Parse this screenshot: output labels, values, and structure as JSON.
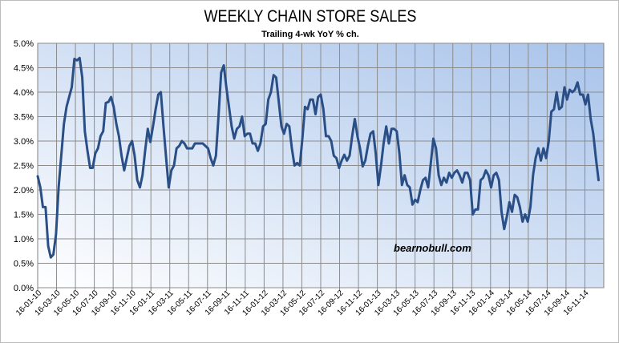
{
  "chart_data": {
    "type": "line",
    "title": "WEEKLY CHAIN STORE SALES",
    "subtitle": "Trailing 4-wk YoY % ch.",
    "watermark": "bearnobull.com",
    "ylim": [
      0,
      5
    ],
    "yticks": [
      "0.0%",
      "0.5%",
      "1.0%",
      "1.5%",
      "2.0%",
      "2.5%",
      "3.0%",
      "3.5%",
      "4.0%",
      "4.5%",
      "5.0%"
    ],
    "x_tick_labels": [
      "16-01-10",
      "16-03-10",
      "16-05-10",
      "16-07-10",
      "16-09-10",
      "16-11-10",
      "16-01-11",
      "16-03-11",
      "16-05-11",
      "16-07-11",
      "16-09-11",
      "16-11-11",
      "16-01-12",
      "16-03-12",
      "16-05-12",
      "16-07-12",
      "16-09-12",
      "16-11-12",
      "16-01-13",
      "16-03-13",
      "16-05-13",
      "16-07-13",
      "16-09-13",
      "16-11-13",
      "16-01-14",
      "16-03-14",
      "16-05-14",
      "16-07-14",
      "16-09-14",
      "16-11-14"
    ],
    "grid": true,
    "plot_background": [
      "#ffffff",
      "#a8c3ea"
    ],
    "line_color": "#2a4f86",
    "series": [
      {
        "points": [
          [
            0,
            2.28
          ],
          [
            1,
            2.05
          ],
          [
            2,
            1.65
          ],
          [
            3,
            1.65
          ],
          [
            4,
            0.85
          ],
          [
            5,
            0.62
          ],
          [
            6,
            0.68
          ],
          [
            7,
            1.1
          ],
          [
            8,
            2.05
          ],
          [
            9,
            2.7
          ],
          [
            10,
            3.35
          ],
          [
            11,
            3.7
          ],
          [
            12,
            3.9
          ],
          [
            13,
            4.1
          ],
          [
            14,
            4.68
          ],
          [
            15,
            4.65
          ],
          [
            16,
            4.7
          ],
          [
            17,
            4.3
          ],
          [
            18,
            3.2
          ],
          [
            19,
            2.8
          ],
          [
            20,
            2.45
          ],
          [
            21,
            2.45
          ],
          [
            22,
            2.75
          ],
          [
            23,
            2.85
          ],
          [
            24,
            3.1
          ],
          [
            25,
            3.2
          ],
          [
            26,
            3.78
          ],
          [
            27,
            3.8
          ],
          [
            28,
            3.9
          ],
          [
            29,
            3.7
          ],
          [
            30,
            3.35
          ],
          [
            31,
            3.1
          ],
          [
            32,
            2.7
          ],
          [
            33,
            2.4
          ],
          [
            34,
            2.65
          ],
          [
            35,
            2.9
          ],
          [
            36,
            3.0
          ],
          [
            37,
            2.7
          ],
          [
            38,
            2.2
          ],
          [
            39,
            2.05
          ],
          [
            40,
            2.3
          ],
          [
            41,
            2.8
          ],
          [
            42,
            3.25
          ],
          [
            43,
            2.98
          ],
          [
            44,
            3.3
          ],
          [
            45,
            3.65
          ],
          [
            46,
            3.95
          ],
          [
            47,
            4.0
          ],
          [
            48,
            3.3
          ],
          [
            49,
            2.65
          ],
          [
            50,
            2.05
          ],
          [
            51,
            2.4
          ],
          [
            52,
            2.5
          ],
          [
            53,
            2.85
          ],
          [
            54,
            2.9
          ],
          [
            55,
            3.0
          ],
          [
            56,
            2.95
          ],
          [
            57,
            2.85
          ],
          [
            58,
            2.85
          ],
          [
            59,
            2.85
          ],
          [
            60,
            2.95
          ],
          [
            61,
            2.95
          ],
          [
            62,
            2.95
          ],
          [
            63,
            2.95
          ],
          [
            64,
            2.9
          ],
          [
            65,
            2.85
          ],
          [
            66,
            2.65
          ],
          [
            67,
            2.5
          ],
          [
            68,
            2.7
          ],
          [
            69,
            3.5
          ],
          [
            70,
            4.4
          ],
          [
            71,
            4.55
          ],
          [
            72,
            4.1
          ],
          [
            73,
            3.7
          ],
          [
            74,
            3.3
          ],
          [
            75,
            3.05
          ],
          [
            76,
            3.25
          ],
          [
            77,
            3.3
          ],
          [
            78,
            3.5
          ],
          [
            79,
            3.1
          ],
          [
            80,
            3.15
          ],
          [
            81,
            3.15
          ],
          [
            82,
            2.95
          ],
          [
            83,
            2.95
          ],
          [
            84,
            2.8
          ],
          [
            85,
            2.95
          ],
          [
            86,
            3.3
          ],
          [
            87,
            3.35
          ],
          [
            88,
            3.85
          ],
          [
            89,
            4.0
          ],
          [
            90,
            4.35
          ],
          [
            91,
            4.3
          ],
          [
            92,
            3.8
          ],
          [
            93,
            3.3
          ],
          [
            94,
            3.15
          ],
          [
            95,
            3.35
          ],
          [
            96,
            3.3
          ],
          [
            97,
            2.85
          ],
          [
            98,
            2.5
          ],
          [
            99,
            2.55
          ],
          [
            100,
            2.5
          ],
          [
            101,
            3.05
          ],
          [
            102,
            3.7
          ],
          [
            103,
            3.65
          ],
          [
            104,
            3.85
          ],
          [
            105,
            3.85
          ],
          [
            106,
            3.55
          ],
          [
            107,
            3.9
          ],
          [
            108,
            3.95
          ],
          [
            109,
            3.65
          ],
          [
            110,
            3.1
          ],
          [
            111,
            3.1
          ],
          [
            112,
            3.0
          ],
          [
            113,
            2.7
          ],
          [
            114,
            2.65
          ],
          [
            115,
            2.45
          ],
          [
            116,
            2.6
          ],
          [
            117,
            2.72
          ],
          [
            118,
            2.6
          ],
          [
            119,
            2.7
          ],
          [
            120,
            3.1
          ],
          [
            121,
            3.45
          ],
          [
            122,
            3.1
          ],
          [
            123,
            2.85
          ],
          [
            124,
            2.48
          ],
          [
            125,
            2.6
          ],
          [
            126,
            2.9
          ],
          [
            127,
            3.15
          ],
          [
            128,
            3.2
          ],
          [
            129,
            2.75
          ],
          [
            130,
            2.1
          ],
          [
            131,
            2.5
          ],
          [
            132,
            2.95
          ],
          [
            133,
            3.3
          ],
          [
            134,
            2.95
          ],
          [
            135,
            3.25
          ],
          [
            136,
            3.25
          ],
          [
            137,
            3.2
          ],
          [
            138,
            2.75
          ],
          [
            139,
            2.1
          ],
          [
            140,
            2.3
          ],
          [
            141,
            2.1
          ],
          [
            142,
            2.05
          ],
          [
            143,
            1.7
          ],
          [
            144,
            1.8
          ],
          [
            145,
            1.75
          ],
          [
            146,
            2.0
          ],
          [
            147,
            2.2
          ],
          [
            148,
            2.25
          ],
          [
            149,
            2.05
          ],
          [
            150,
            2.55
          ],
          [
            151,
            3.05
          ],
          [
            152,
            2.85
          ],
          [
            153,
            2.3
          ],
          [
            154,
            2.1
          ],
          [
            155,
            2.25
          ],
          [
            156,
            2.15
          ],
          [
            157,
            2.35
          ],
          [
            158,
            2.25
          ],
          [
            159,
            2.35
          ],
          [
            160,
            2.4
          ],
          [
            161,
            2.3
          ],
          [
            162,
            2.15
          ],
          [
            163,
            2.35
          ],
          [
            164,
            2.35
          ],
          [
            165,
            2.2
          ],
          [
            166,
            1.5
          ],
          [
            167,
            1.6
          ],
          [
            168,
            1.6
          ],
          [
            169,
            2.2
          ],
          [
            170,
            2.25
          ],
          [
            171,
            2.4
          ],
          [
            172,
            2.3
          ],
          [
            173,
            2.05
          ],
          [
            174,
            2.3
          ],
          [
            175,
            2.35
          ],
          [
            176,
            2.2
          ],
          [
            177,
            1.55
          ],
          [
            178,
            1.2
          ],
          [
            179,
            1.45
          ],
          [
            180,
            1.75
          ],
          [
            181,
            1.55
          ],
          [
            182,
            1.9
          ],
          [
            183,
            1.85
          ],
          [
            184,
            1.65
          ],
          [
            185,
            1.35
          ],
          [
            186,
            1.5
          ],
          [
            187,
            1.35
          ],
          [
            188,
            1.65
          ],
          [
            189,
            2.3
          ],
          [
            190,
            2.65
          ],
          [
            191,
            2.85
          ],
          [
            192,
            2.6
          ],
          [
            193,
            2.85
          ],
          [
            194,
            2.65
          ],
          [
            195,
            3.0
          ],
          [
            196,
            3.6
          ],
          [
            197,
            3.65
          ],
          [
            198,
            4.0
          ],
          [
            199,
            3.65
          ],
          [
            200,
            3.7
          ],
          [
            201,
            4.1
          ],
          [
            202,
            3.85
          ],
          [
            203,
            4.05
          ],
          [
            204,
            4.0
          ],
          [
            205,
            4.05
          ],
          [
            206,
            4.2
          ],
          [
            207,
            3.95
          ],
          [
            208,
            3.95
          ],
          [
            209,
            3.75
          ],
          [
            210,
            3.95
          ],
          [
            211,
            3.45
          ],
          [
            212,
            3.15
          ],
          [
            213,
            2.65
          ],
          [
            214,
            2.2
          ]
        ]
      }
    ]
  }
}
